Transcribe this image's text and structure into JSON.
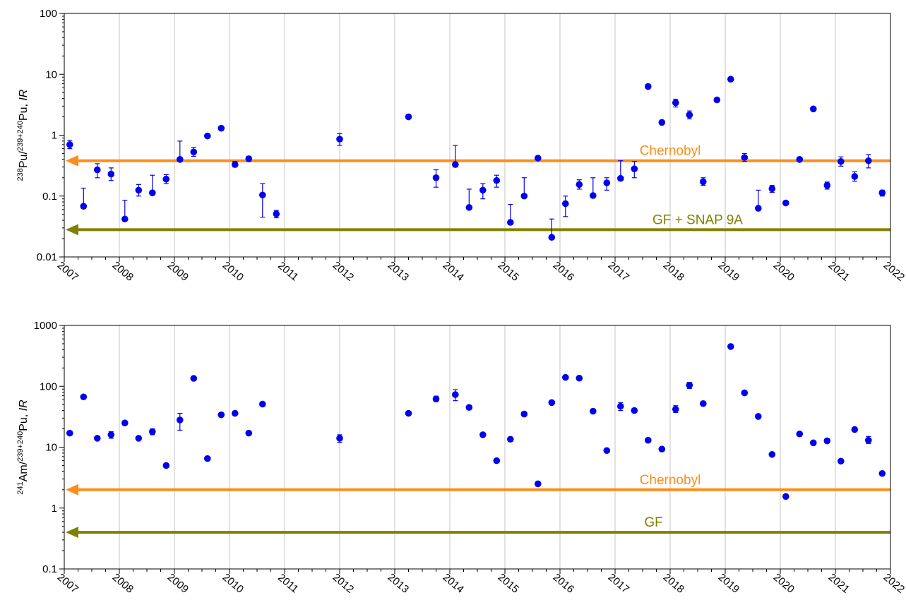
{
  "chart_data": [
    {
      "type": "scatter",
      "ylabel": {
        "sup1": "238",
        "a": "Pu/",
        "sup2": "239+240",
        "b": "Pu, ",
        "i": "IR"
      },
      "yscale": "log",
      "ylim": [
        0.01,
        100
      ],
      "yticks": [
        {
          "v": 0.01,
          "label": "0.01"
        },
        {
          "v": 0.1,
          "label": "0.1"
        },
        {
          "v": 1,
          "label": "1"
        },
        {
          "v": 10,
          "label": "10"
        },
        {
          "v": 100,
          "label": "100"
        }
      ],
      "xlim": [
        2007,
        2022
      ],
      "xticks": [
        "2007",
        "2008",
        "2009",
        "2010",
        "2011",
        "2012",
        "2013",
        "2014",
        "2015",
        "2016",
        "2017",
        "2018",
        "2019",
        "2020",
        "2021",
        "2022"
      ],
      "grid": "vertical",
      "ref_lines": [
        {
          "label": "Chernobyl",
          "y": 0.38,
          "color": "#ff8c1a",
          "label_x": 2018
        },
        {
          "label": "GF + SNAP 9A",
          "y": 0.028,
          "color": "#808000",
          "label_x": 2018.5
        }
      ],
      "point_color": "#0000ee",
      "series": [
        {
          "points": [
            {
              "x": 2007.1,
              "y": 0.7,
              "lo": 0.6,
              "hi": 0.82
            },
            {
              "x": 2007.35,
              "y": 0.068,
              "lo": 0.064,
              "hi": 0.135
            },
            {
              "x": 2007.6,
              "y": 0.27,
              "lo": 0.2,
              "hi": 0.34
            },
            {
              "x": 2007.85,
              "y": 0.23,
              "lo": 0.18,
              "hi": 0.29
            },
            {
              "x": 2008.1,
              "y": 0.042,
              "lo": 0.04,
              "hi": 0.085
            },
            {
              "x": 2008.35,
              "y": 0.125,
              "lo": 0.1,
              "hi": 0.155
            },
            {
              "x": 2008.6,
              "y": 0.113,
              "lo": 0.105,
              "hi": 0.22
            },
            {
              "x": 2008.85,
              "y": 0.19,
              "lo": 0.16,
              "hi": 0.225
            },
            {
              "x": 2009.1,
              "y": 0.4,
              "lo": 0.37,
              "hi": 0.8
            },
            {
              "x": 2009.35,
              "y": 0.53,
              "lo": 0.45,
              "hi": 0.63
            },
            {
              "x": 2009.6,
              "y": 0.97
            },
            {
              "x": 2009.85,
              "y": 1.3
            },
            {
              "x": 2010.1,
              "y": 0.33,
              "lo": 0.3,
              "hi": 0.37
            },
            {
              "x": 2010.35,
              "y": 0.41,
              "lo": 0.37,
              "hi": 0.45
            },
            {
              "x": 2010.6,
              "y": 0.104,
              "lo": 0.045,
              "hi": 0.16
            },
            {
              "x": 2010.85,
              "y": 0.051,
              "lo": 0.044,
              "hi": 0.058
            },
            {
              "x": 2012.0,
              "y": 0.86,
              "lo": 0.68,
              "hi": 1.06
            },
            {
              "x": 2013.25,
              "y": 2.0
            },
            {
              "x": 2013.75,
              "y": 0.2,
              "lo": 0.14,
              "hi": 0.27
            },
            {
              "x": 2014.1,
              "y": 0.33,
              "lo": 0.3,
              "hi": 0.68
            },
            {
              "x": 2014.35,
              "y": 0.065,
              "lo": 0.06,
              "hi": 0.13
            },
            {
              "x": 2014.6,
              "y": 0.125,
              "lo": 0.09,
              "hi": 0.16
            },
            {
              "x": 2014.85,
              "y": 0.18,
              "lo": 0.14,
              "hi": 0.22
            },
            {
              "x": 2015.1,
              "y": 0.037,
              "lo": 0.034,
              "hi": 0.073
            },
            {
              "x": 2015.35,
              "y": 0.1,
              "lo": 0.095,
              "hi": 0.2
            },
            {
              "x": 2015.6,
              "y": 0.42
            },
            {
              "x": 2015.85,
              "y": 0.021,
              "lo": 0.02,
              "hi": 0.042
            },
            {
              "x": 2016.1,
              "y": 0.075,
              "lo": 0.046,
              "hi": 0.1
            },
            {
              "x": 2016.35,
              "y": 0.155,
              "lo": 0.13,
              "hi": 0.185
            },
            {
              "x": 2016.6,
              "y": 0.102,
              "lo": 0.095,
              "hi": 0.2
            },
            {
              "x": 2016.85,
              "y": 0.165,
              "lo": 0.125,
              "hi": 0.2
            },
            {
              "x": 2017.1,
              "y": 0.195,
              "lo": 0.18,
              "hi": 0.38
            },
            {
              "x": 2017.35,
              "y": 0.28,
              "lo": 0.2,
              "hi": 0.37
            },
            {
              "x": 2017.6,
              "y": 6.3
            },
            {
              "x": 2017.85,
              "y": 1.62
            },
            {
              "x": 2018.1,
              "y": 3.4,
              "lo": 2.9,
              "hi": 3.9
            },
            {
              "x": 2018.35,
              "y": 2.15,
              "lo": 1.85,
              "hi": 2.5
            },
            {
              "x": 2018.6,
              "y": 0.172,
              "lo": 0.15,
              "hi": 0.2
            },
            {
              "x": 2018.85,
              "y": 3.8
            },
            {
              "x": 2019.1,
              "y": 8.3
            },
            {
              "x": 2019.35,
              "y": 0.43,
              "lo": 0.37,
              "hi": 0.5
            },
            {
              "x": 2019.6,
              "y": 0.063,
              "lo": 0.06,
              "hi": 0.125
            },
            {
              "x": 2019.85,
              "y": 0.132,
              "lo": 0.115,
              "hi": 0.15
            },
            {
              "x": 2020.1,
              "y": 0.077
            },
            {
              "x": 2020.35,
              "y": 0.4,
              "lo": 0.37,
              "hi": 0.43
            },
            {
              "x": 2020.6,
              "y": 2.7
            },
            {
              "x": 2020.85,
              "y": 0.15,
              "lo": 0.13,
              "hi": 0.17
            },
            {
              "x": 2021.1,
              "y": 0.37,
              "lo": 0.31,
              "hi": 0.44
            },
            {
              "x": 2021.35,
              "y": 0.21,
              "lo": 0.175,
              "hi": 0.25
            },
            {
              "x": 2021.6,
              "y": 0.38,
              "lo": 0.29,
              "hi": 0.48
            },
            {
              "x": 2021.85,
              "y": 0.113,
              "lo": 0.1,
              "hi": 0.125
            }
          ]
        }
      ]
    },
    {
      "type": "scatter",
      "ylabel": {
        "sup1": "241",
        "a": "Am/",
        "sup2": "239+240",
        "b": "Pu, ",
        "i": "IR"
      },
      "yscale": "log",
      "ylim": [
        0.1,
        1000
      ],
      "yticks": [
        {
          "v": 0.1,
          "label": "0.1"
        },
        {
          "v": 1,
          "label": "1"
        },
        {
          "v": 10,
          "label": "10"
        },
        {
          "v": 100,
          "label": "100"
        },
        {
          "v": 1000,
          "label": "1000"
        }
      ],
      "xlim": [
        2007,
        2022
      ],
      "xticks": [
        "2007",
        "2008",
        "2009",
        "2010",
        "2011",
        "2012",
        "2013",
        "2014",
        "2015",
        "2016",
        "2017",
        "2018",
        "2019",
        "2020",
        "2021",
        "2022"
      ],
      "grid": "vertical",
      "ref_lines": [
        {
          "label": "Chernobyl",
          "y": 2.0,
          "color": "#ff8c1a",
          "label_x": 2018
        },
        {
          "label": "GF",
          "y": 0.4,
          "color": "#808000",
          "label_x": 2017.7
        }
      ],
      "point_color": "#0000ee",
      "series": [
        {
          "points": [
            {
              "x": 2007.1,
              "y": 17
            },
            {
              "x": 2007.35,
              "y": 67
            },
            {
              "x": 2007.6,
              "y": 14
            },
            {
              "x": 2007.85,
              "y": 16,
              "lo": 14,
              "hi": 18
            },
            {
              "x": 2008.1,
              "y": 25
            },
            {
              "x": 2008.35,
              "y": 14
            },
            {
              "x": 2008.6,
              "y": 18,
              "lo": 16,
              "hi": 20
            },
            {
              "x": 2008.85,
              "y": 5
            },
            {
              "x": 2009.1,
              "y": 28,
              "lo": 19,
              "hi": 36
            },
            {
              "x": 2009.35,
              "y": 135
            },
            {
              "x": 2009.6,
              "y": 6.5
            },
            {
              "x": 2009.85,
              "y": 34
            },
            {
              "x": 2010.1,
              "y": 36
            },
            {
              "x": 2010.35,
              "y": 17
            },
            {
              "x": 2010.6,
              "y": 51
            },
            {
              "x": 2012.0,
              "y": 14,
              "lo": 12,
              "hi": 16
            },
            {
              "x": 2013.25,
              "y": 36
            },
            {
              "x": 2013.75,
              "y": 62,
              "lo": 56,
              "hi": 69
            },
            {
              "x": 2014.1,
              "y": 73,
              "lo": 58,
              "hi": 88
            },
            {
              "x": 2014.35,
              "y": 45
            },
            {
              "x": 2014.6,
              "y": 16
            },
            {
              "x": 2014.85,
              "y": 6
            },
            {
              "x": 2015.1,
              "y": 13.5
            },
            {
              "x": 2015.35,
              "y": 35
            },
            {
              "x": 2015.6,
              "y": 2.5
            },
            {
              "x": 2015.85,
              "y": 54
            },
            {
              "x": 2016.1,
              "y": 140
            },
            {
              "x": 2016.35,
              "y": 136
            },
            {
              "x": 2016.6,
              "y": 39
            },
            {
              "x": 2016.85,
              "y": 8.8
            },
            {
              "x": 2017.1,
              "y": 47,
              "lo": 40,
              "hi": 54
            },
            {
              "x": 2017.35,
              "y": 40
            },
            {
              "x": 2017.6,
              "y": 13
            },
            {
              "x": 2017.85,
              "y": 9.3
            },
            {
              "x": 2018.1,
              "y": 42,
              "lo": 37,
              "hi": 48
            },
            {
              "x": 2018.35,
              "y": 104,
              "lo": 92,
              "hi": 116
            },
            {
              "x": 2018.6,
              "y": 52
            },
            {
              "x": 2019.1,
              "y": 450
            },
            {
              "x": 2019.35,
              "y": 78
            },
            {
              "x": 2019.6,
              "y": 32
            },
            {
              "x": 2019.85,
              "y": 7.6
            },
            {
              "x": 2020.1,
              "y": 1.55
            },
            {
              "x": 2020.35,
              "y": 16.5
            },
            {
              "x": 2020.6,
              "y": 11.8
            },
            {
              "x": 2020.85,
              "y": 12.7
            },
            {
              "x": 2021.1,
              "y": 5.9
            },
            {
              "x": 2021.35,
              "y": 19.5
            },
            {
              "x": 2021.6,
              "y": 13,
              "lo": 11.5,
              "hi": 15
            },
            {
              "x": 2021.85,
              "y": 3.7
            }
          ]
        }
      ]
    }
  ]
}
